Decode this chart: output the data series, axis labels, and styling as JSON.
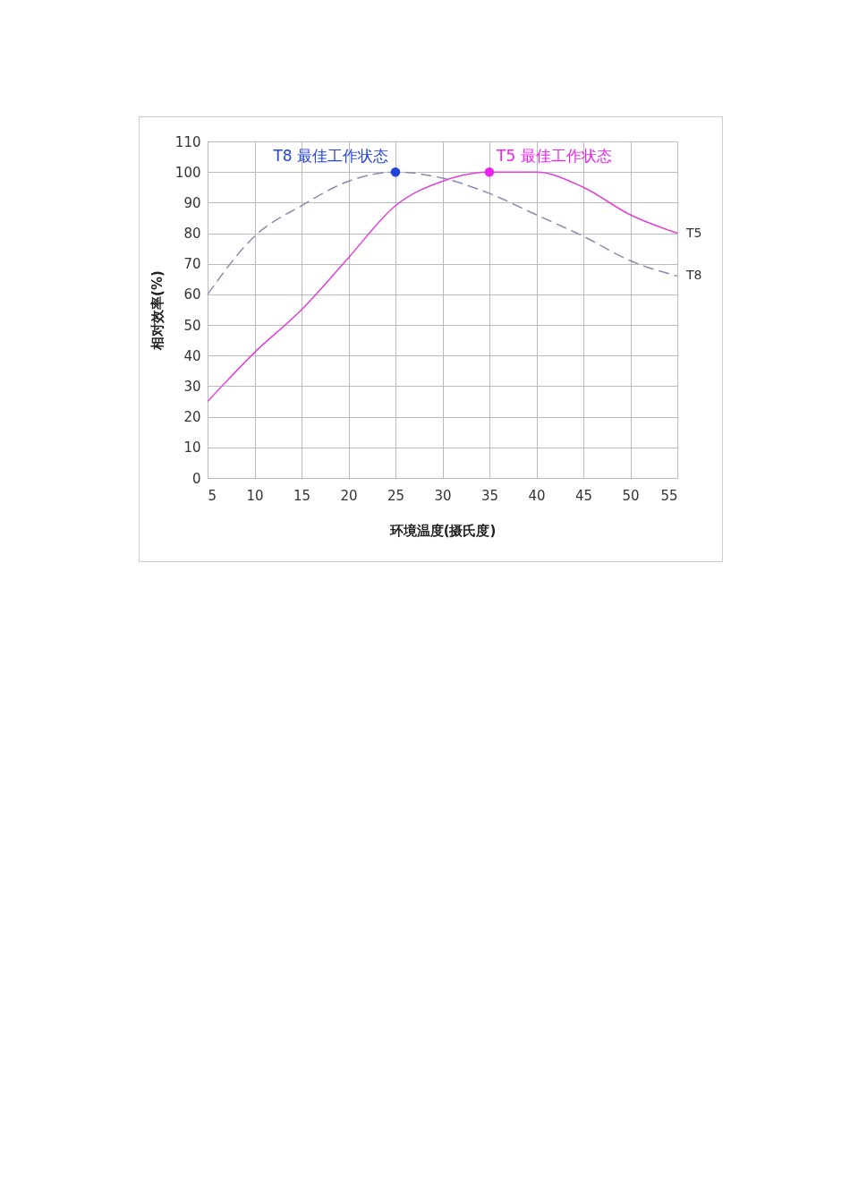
{
  "chart_data": {
    "type": "line",
    "xlabel": "环境温度(摄氏度)",
    "ylabel": "相对效率(%)",
    "x": [
      5,
      10,
      15,
      20,
      25,
      30,
      35,
      40,
      45,
      50,
      55
    ],
    "xlim": [
      5,
      55
    ],
    "xticks": [
      5,
      10,
      15,
      20,
      25,
      30,
      35,
      40,
      45,
      50,
      55
    ],
    "ylim": [
      0,
      110
    ],
    "yticks": [
      0,
      10,
      20,
      30,
      40,
      50,
      60,
      70,
      80,
      90,
      100,
      110
    ],
    "grid": true,
    "legend": false,
    "marker": "none",
    "series": [
      {
        "name": "T8",
        "color": "#8a8ab8",
        "line_style": "dashed",
        "values": [
          60,
          79,
          89,
          97,
          100,
          98,
          93,
          86,
          79,
          71,
          66
        ]
      },
      {
        "name": "T5",
        "color": "#e040d8",
        "line_style": "solid",
        "values": [
          25,
          41,
          55,
          72,
          89,
          97,
          100,
          100,
          95,
          86,
          80
        ]
      }
    ],
    "annotations": [
      {
        "text": "T8 最佳工作状态",
        "x": 25,
        "y": 100
      },
      {
        "text": "T5 最佳工作状态",
        "x": 35,
        "y": 100
      }
    ]
  }
}
